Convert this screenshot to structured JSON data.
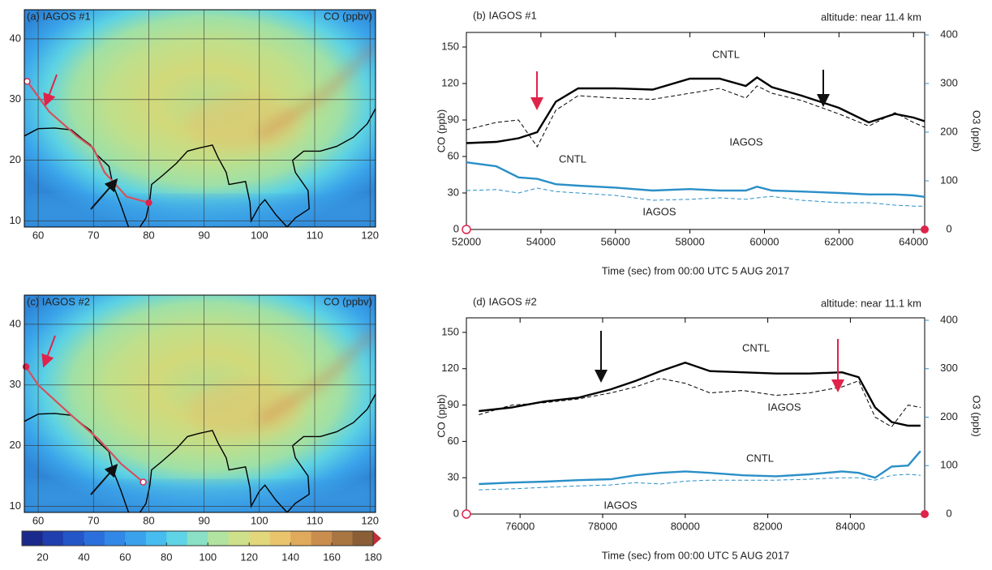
{
  "chart_data": [
    {
      "type": "map",
      "title": "(a) IAGOS #1",
      "label": "CO (ppbv)",
      "xlim": [
        57.5,
        121
      ],
      "ylim": [
        9,
        44.8
      ],
      "xticks": [
        60,
        70,
        80,
        90,
        100,
        110,
        120
      ],
      "yticks": [
        10,
        20,
        30,
        40
      ],
      "grid": true
    },
    {
      "type": "line",
      "title": "(b) IAGOS #1",
      "annotation": "altitude: near 11.4 km",
      "xlabel": "Time (sec) from 00:00 UTC 5 AUG 2017",
      "ylabel": "CO (ppb)",
      "y2label": "O3 (ppb)",
      "xlim": [
        52000,
        64300
      ],
      "xticks": [
        52000,
        54000,
        56000,
        58000,
        60000,
        62000,
        64000
      ],
      "ylim": [
        0,
        162
      ],
      "yticks": [
        0,
        30,
        60,
        90,
        120,
        150
      ],
      "y2lim": [
        0,
        405
      ],
      "y2ticks": [
        0,
        100,
        200,
        300,
        400
      ],
      "x": [
        52000,
        52800,
        53400,
        53900,
        54400,
        55000,
        56000,
        57000,
        58000,
        58800,
        59500,
        59800,
        60200,
        61000,
        62000,
        62800,
        63500,
        64000,
        64300
      ],
      "series": [
        {
          "name": "CNTL",
          "color": "#000000",
          "line_style": "solid",
          "values": [
            71,
            72,
            75,
            80,
            105,
            116,
            116,
            115,
            124,
            124,
            118,
            125,
            117,
            110,
            100,
            88,
            95,
            92,
            89
          ]
        },
        {
          "name": "IAGOS",
          "color": "#000000",
          "line_style": "dashed",
          "values": [
            82,
            88,
            90,
            68,
            98,
            110,
            108,
            107,
            112,
            116,
            108,
            118,
            112,
            106,
            95,
            85,
            96,
            88,
            84
          ]
        },
        {
          "name": "CNTL",
          "color": "#2a8fc7",
          "line_style": "solid",
          "axis": "y2",
          "values": [
            138,
            130,
            107,
            104,
            93,
            90,
            86,
            80,
            83,
            80,
            80,
            88,
            80,
            78,
            75,
            72,
            72,
            70,
            67
          ]
        },
        {
          "name": "IAGOS",
          "color": "#2a8fc7",
          "line_style": "dashed",
          "axis": "y2",
          "values": [
            80,
            82,
            75,
            85,
            78,
            75,
            70,
            60,
            62,
            65,
            62,
            65,
            68,
            60,
            55,
            55,
            50,
            48,
            48
          ]
        }
      ]
    },
    {
      "type": "map",
      "title": "(c) IAGOS #2",
      "label": "CO (ppbv)",
      "xlim": [
        57.5,
        121
      ],
      "ylim": [
        9,
        44.8
      ],
      "xticks": [
        60,
        70,
        80,
        90,
        100,
        110,
        120
      ],
      "yticks": [
        10,
        20,
        30,
        40
      ],
      "grid": true
    },
    {
      "type": "line",
      "title": "(d) IAGOS #2",
      "annotation": "altitude: near 11.1 km",
      "xlabel": "Time (sec) from 00:00 UTC 5 AUG 2017",
      "ylabel": "CO (ppb)",
      "y2label": "O3 (ppb)",
      "xlim": [
        74700,
        85800
      ],
      "xticks": [
        76000,
        78000,
        80000,
        82000,
        84000
      ],
      "ylim": [
        0,
        162
      ],
      "yticks": [
        0,
        30,
        60,
        90,
        120,
        150
      ],
      "y2lim": [
        0,
        405
      ],
      "y2ticks": [
        0,
        100,
        200,
        300,
        400
      ],
      "x": [
        75000,
        75800,
        76600,
        77400,
        78200,
        78800,
        79400,
        80000,
        80600,
        81400,
        82200,
        83000,
        83800,
        84200,
        84600,
        85000,
        85400,
        85700
      ],
      "series": [
        {
          "name": "CNTL",
          "color": "#000000",
          "line_style": "solid",
          "values": [
            85,
            88,
            93,
            96,
            103,
            110,
            118,
            125,
            118,
            117,
            116,
            116,
            117,
            113,
            88,
            76,
            73,
            73
          ]
        },
        {
          "name": "IAGOS",
          "color": "#000000",
          "line_style": "dashed",
          "values": [
            82,
            90,
            92,
            95,
            100,
            105,
            112,
            108,
            100,
            102,
            98,
            100,
            105,
            110,
            80,
            72,
            90,
            88
          ]
        },
        {
          "name": "CNTL",
          "color": "#2a8fc7",
          "line_style": "solid",
          "axis": "y2",
          "values": [
            62,
            65,
            67,
            70,
            72,
            80,
            85,
            88,
            85,
            80,
            78,
            82,
            88,
            85,
            75,
            98,
            100,
            130
          ]
        },
        {
          "name": "IAGOS",
          "color": "#2a8fc7",
          "line_style": "dashed",
          "axis": "y2",
          "values": [
            50,
            52,
            55,
            58,
            60,
            65,
            62,
            68,
            70,
            70,
            70,
            72,
            75,
            75,
            70,
            80,
            82,
            80
          ]
        }
      ]
    },
    {
      "type": "colorbar",
      "xlim": [
        10,
        180
      ],
      "xticks": [
        20,
        40,
        60,
        80,
        100,
        120,
        140,
        160,
        180
      ],
      "colors": [
        "#1a2a8c",
        "#1f3fae",
        "#2456c8",
        "#2a6fdc",
        "#3288e6",
        "#3aa2ec",
        "#46bcef",
        "#5fd4e6",
        "#8ae0c4",
        "#b2e3a0",
        "#cfe08a",
        "#e2d77a",
        "#e9c46c",
        "#e0aa5c",
        "#c98e4e",
        "#a97642",
        "#8a5e36"
      ]
    }
  ]
}
